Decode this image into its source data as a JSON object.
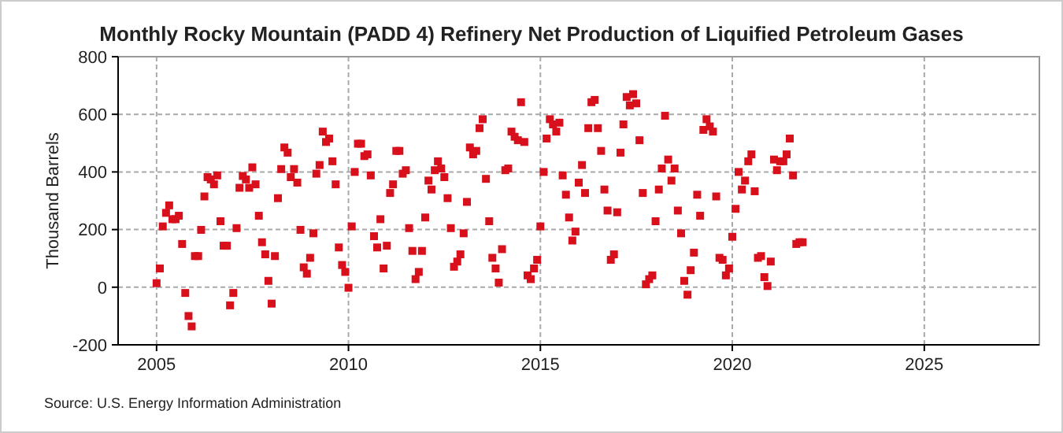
{
  "chart_data": {
    "type": "scatter",
    "title": "Monthly Rocky Mountain (PADD 4) Refinery Net Production of Liquified Petroleum Gases",
    "ylabel": "Thousand Barrels",
    "annotations": [
      "Source: U.S. Energy Information Administration"
    ],
    "x": [
      "2005-01",
      "2005-02",
      "2005-03",
      "2005-04",
      "2005-05",
      "2005-06",
      "2005-07",
      "2005-08",
      "2005-09",
      "2005-10",
      "2005-11",
      "2005-12",
      "2006-01",
      "2006-02",
      "2006-03",
      "2006-04",
      "2006-05",
      "2006-06",
      "2006-07",
      "2006-08",
      "2006-09",
      "2006-10",
      "2006-11",
      "2006-12",
      "2007-01",
      "2007-02",
      "2007-03",
      "2007-04",
      "2007-05",
      "2007-06",
      "2007-07",
      "2007-08",
      "2007-09",
      "2007-10",
      "2007-11",
      "2007-12",
      "2008-01",
      "2008-02",
      "2008-03",
      "2008-04",
      "2008-05",
      "2008-06",
      "2008-07",
      "2008-08",
      "2008-09",
      "2008-10",
      "2008-11",
      "2008-12",
      "2009-01",
      "2009-02",
      "2009-03",
      "2009-04",
      "2009-05",
      "2009-06",
      "2009-07",
      "2009-08",
      "2009-09",
      "2009-10",
      "2009-11",
      "2009-12",
      "2010-01",
      "2010-02",
      "2010-03",
      "2010-04",
      "2010-05",
      "2010-06",
      "2010-07",
      "2010-08",
      "2010-09",
      "2010-10",
      "2010-11",
      "2010-12",
      "2011-01",
      "2011-02",
      "2011-03",
      "2011-04",
      "2011-05",
      "2011-06",
      "2011-07",
      "2011-08",
      "2011-09",
      "2011-10",
      "2011-11",
      "2011-12",
      "2012-01",
      "2012-02",
      "2012-03",
      "2012-04",
      "2012-05",
      "2012-06",
      "2012-07",
      "2012-08",
      "2012-09",
      "2012-10",
      "2012-11",
      "2012-12",
      "2013-01",
      "2013-02",
      "2013-03",
      "2013-04",
      "2013-05",
      "2013-06",
      "2013-07",
      "2013-08",
      "2013-09",
      "2013-10",
      "2013-11",
      "2013-12",
      "2014-01",
      "2014-02",
      "2014-03",
      "2014-04",
      "2014-05",
      "2014-06",
      "2014-07",
      "2014-08",
      "2014-09",
      "2014-10",
      "2014-11",
      "2014-12",
      "2015-01",
      "2015-02",
      "2015-03",
      "2015-04",
      "2015-05",
      "2015-06",
      "2015-07",
      "2015-08",
      "2015-09",
      "2015-10",
      "2015-11",
      "2015-12",
      "2016-01",
      "2016-02",
      "2016-03",
      "2016-04",
      "2016-05",
      "2016-06",
      "2016-07",
      "2016-08",
      "2016-09",
      "2016-10",
      "2016-11",
      "2016-12",
      "2017-01",
      "2017-02",
      "2017-03",
      "2017-04",
      "2017-05",
      "2017-06",
      "2017-07",
      "2017-08",
      "2017-09",
      "2017-10",
      "2017-11",
      "2017-12",
      "2018-01",
      "2018-02",
      "2018-03",
      "2018-04",
      "2018-05",
      "2018-06",
      "2018-07",
      "2018-08",
      "2018-09",
      "2018-10",
      "2018-11",
      "2018-12",
      "2019-01",
      "2019-02",
      "2019-03",
      "2019-04",
      "2019-05",
      "2019-06",
      "2019-07",
      "2019-08",
      "2019-09",
      "2019-10",
      "2019-11",
      "2019-12",
      "2020-01",
      "2020-02",
      "2020-03",
      "2020-04",
      "2020-05",
      "2020-06",
      "2020-07",
      "2020-08",
      "2020-09",
      "2020-10",
      "2020-11",
      "2020-12",
      "2021-01",
      "2021-02",
      "2021-03",
      "2021-04",
      "2021-05",
      "2021-06",
      "2021-07",
      "2021-08",
      "2021-09",
      "2021-10",
      "2021-11"
    ],
    "series": [
      {
        "color": "#d7101c",
        "values": [
          14,
          65,
          211,
          258,
          284,
          236,
          236,
          248,
          150,
          -20,
          -100,
          -136,
          108,
          108,
          199,
          315,
          382,
          374,
          357,
          388,
          229,
          144,
          144,
          -63,
          -20,
          205,
          345,
          386,
          374,
          345,
          416,
          357,
          248,
          156,
          114,
          22,
          -57,
          108,
          309,
          410,
          485,
          467,
          382,
          410,
          363,
          199,
          69,
          47,
          102,
          187,
          394,
          424,
          540,
          504,
          516,
          437,
          357,
          138,
          77,
          53,
          -2,
          211,
          400,
          498,
          498,
          455,
          461,
          388,
          177,
          138,
          236,
          65,
          144,
          327,
          357,
          473,
          473,
          394,
          406,
          205,
          126,
          28,
          53,
          126,
          242,
          370,
          339,
          406,
          437,
          412,
          382,
          309,
          205,
          71,
          89,
          114,
          187,
          296,
          485,
          461,
          473,
          552,
          583,
          376,
          229,
          102,
          65,
          16,
          132,
          406,
          412,
          540,
          522,
          510,
          642,
          504,
          41,
          28,
          65,
          95,
          211,
          400,
          516,
          583,
          565,
          540,
          571,
          388,
          321,
          242,
          162,
          193,
          363,
          424,
          327,
          552,
          642,
          650,
          552,
          473,
          339,
          266,
          95,
          114,
          260,
          467,
          565,
          660,
          631,
          670,
          638,
          510,
          327,
          10,
          28,
          41,
          229,
          339,
          412,
          595,
          443,
          370,
          412,
          266,
          187,
          22,
          -26,
          59,
          120,
          321,
          248,
          546,
          583,
          558,
          540,
          315,
          102,
          95,
          41,
          65,
          175,
          272,
          400,
          339,
          370,
          437,
          461,
          333,
          102,
          108,
          35,
          4,
          89,
          443,
          406,
          437,
          437,
          461,
          516,
          388,
          150,
          156,
          156
        ]
      }
    ],
    "xlim": [
      "2004",
      "2028"
    ],
    "xticks": [
      "2005",
      "2010",
      "2015",
      "2020",
      "2025"
    ],
    "ylim": [
      -200,
      800
    ],
    "yticks": [
      -200,
      0,
      200,
      400,
      600,
      800
    ],
    "grid": true,
    "marker": "square"
  }
}
